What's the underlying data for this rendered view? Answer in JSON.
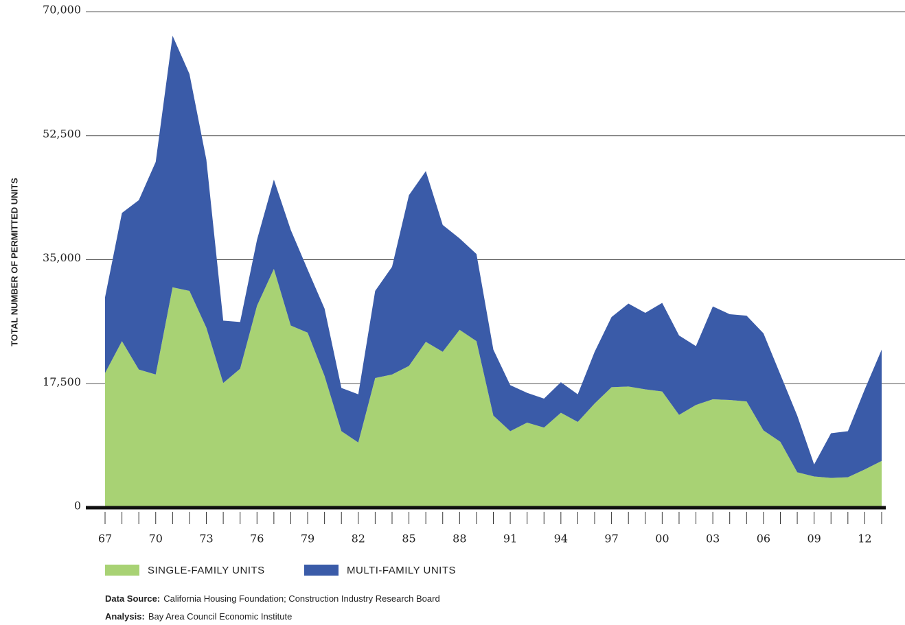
{
  "chart_data": {
    "type": "stacked-area",
    "y_label": "TOTAL NUMBER OF PERMITTED UNITS",
    "categories": [
      "67",
      null,
      null,
      "70",
      null,
      null,
      "73",
      null,
      null,
      "76",
      null,
      null,
      "79",
      null,
      null,
      "82",
      null,
      null,
      "85",
      null,
      null,
      "88",
      null,
      null,
      "91",
      null,
      null,
      "94",
      null,
      null,
      "97",
      null,
      null,
      "00",
      null,
      null,
      "03",
      null,
      null,
      "06",
      null,
      null,
      "09",
      null,
      null,
      "12",
      null
    ],
    "series": [
      {
        "name": "SINGLE-FAMILY UNITS",
        "color": "#a8d274",
        "values": [
          19000,
          23500,
          19500,
          18800,
          31100,
          30600,
          25400,
          17600,
          19600,
          28500,
          33700,
          25700,
          24700,
          18600,
          10800,
          9200,
          18300,
          18800,
          20000,
          23400,
          22000,
          25100,
          23500,
          13000,
          10800,
          12000,
          11300,
          13400,
          12100,
          14700,
          17000,
          17100,
          16700,
          16400,
          13100,
          14500,
          15300,
          15200,
          15000,
          10900,
          9300,
          5000,
          4400,
          4200,
          4300,
          5400,
          6600
        ]
      },
      {
        "name": "MULTI-FAMILY UNITS",
        "color": "#3a5ba8",
        "values": [
          10700,
          18100,
          23900,
          30000,
          35500,
          30600,
          23700,
          8800,
          6600,
          9300,
          12600,
          13500,
          8900,
          9500,
          6100,
          6800,
          12300,
          15200,
          24100,
          24100,
          17900,
          12900,
          12300,
          9300,
          6500,
          4200,
          4100,
          4300,
          3900,
          7300,
          9900,
          11700,
          10800,
          12500,
          11200,
          8300,
          13100,
          12100,
          12100,
          13700,
          9500,
          8000,
          1700,
          6300,
          6500,
          11300,
          15700
        ]
      }
    ],
    "ylim": [
      0,
      70000
    ],
    "yticks": [
      0,
      {
        "value": 17500,
        "label": "17,500"
      },
      {
        "value": 35000,
        "label": "35,000"
      },
      {
        "value": 52500,
        "label": "52,500"
      },
      {
        "value": 70000,
        "label": "70,000"
      }
    ],
    "grid": true,
    "notes": [
      {
        "label": "Data Source:",
        "text": "California Housing Foundation; Construction Industry Research Board"
      },
      {
        "label": "Analysis:",
        "text": "Bay Area Council Economic Institute"
      }
    ]
  }
}
